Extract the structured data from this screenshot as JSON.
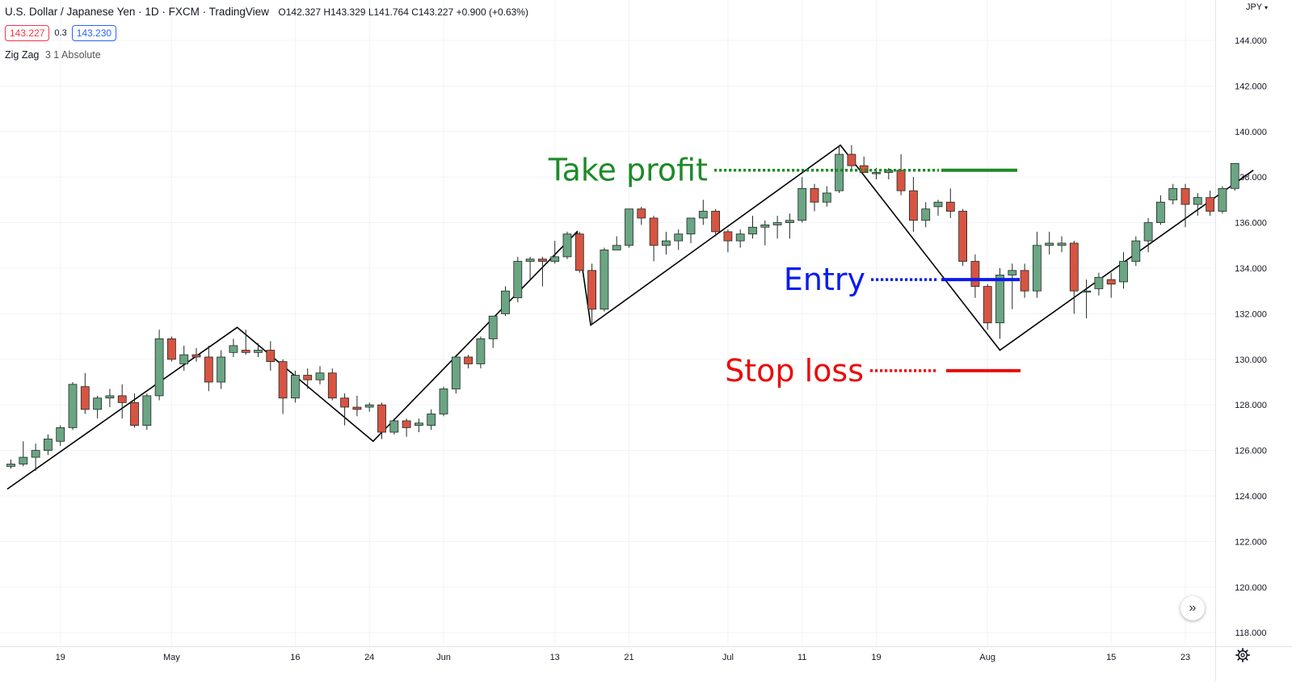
{
  "legend": {
    "title": "U.S. Dollar / Japanese Yen · 1D · FXCM · TradingView",
    "ohlc": "O142.327 H143.329 L141.764 C143.227 +0.900 (+0.63%)",
    "sell_price": "143.227",
    "spread": "0.3",
    "buy_price": "143.230",
    "indicator_name": "Zig Zag",
    "indicator_params": "3 1 Absolute"
  },
  "currency": "JPY",
  "colors": {
    "up": "#6ba583",
    "down": "#d75442",
    "zigzag": "#000000",
    "take_profit": "#1e8a28",
    "entry": "#0a1bf0",
    "stop_loss": "#ea0c0c",
    "grid": "#f0f3fa"
  },
  "chart_data": {
    "type": "candlestick",
    "y_axis": {
      "min": 116.8,
      "max": 145.2,
      "ticks": [
        118,
        120,
        122,
        124,
        126,
        128,
        130,
        132,
        134,
        136,
        138,
        140,
        142,
        144
      ],
      "tick_labels": [
        "118.000",
        "120.000",
        "122.000",
        "124.000",
        "126.000",
        "128.000",
        "130.000",
        "132.000",
        "134.000",
        "136.000",
        "138.000",
        "140.000",
        "142.000",
        "144.000"
      ]
    },
    "x_axis": {
      "labels": [
        {
          "text": "19",
          "idx": 4
        },
        {
          "text": "May",
          "idx": 13
        },
        {
          "text": "16",
          "idx": 23
        },
        {
          "text": "24",
          "idx": 29
        },
        {
          "text": "Jun",
          "idx": 35
        },
        {
          "text": "13",
          "idx": 44
        },
        {
          "text": "21",
          "idx": 50
        },
        {
          "text": "Jul",
          "idx": 58
        },
        {
          "text": "11",
          "idx": 64
        },
        {
          "text": "19",
          "idx": 70
        },
        {
          "text": "Aug",
          "idx": 79
        },
        {
          "text": "15",
          "idx": 89
        },
        {
          "text": "23",
          "idx": 95
        }
      ]
    },
    "candles": [
      [
        125.3,
        125.6,
        125.2,
        125.4
      ],
      [
        125.4,
        126.4,
        125.3,
        125.7
      ],
      [
        125.7,
        126.3,
        125.1,
        126.0
      ],
      [
        126.0,
        126.7,
        125.8,
        126.5
      ],
      [
        126.4,
        127.1,
        126.2,
        127.0
      ],
      [
        127.0,
        129.0,
        126.9,
        128.9
      ],
      [
        128.8,
        129.4,
        127.6,
        127.8
      ],
      [
        127.8,
        128.4,
        127.4,
        128.3
      ],
      [
        128.3,
        128.7,
        127.9,
        128.4
      ],
      [
        128.4,
        128.9,
        127.4,
        128.1
      ],
      [
        128.1,
        128.5,
        127.0,
        127.1
      ],
      [
        127.1,
        128.5,
        126.9,
        128.4
      ],
      [
        128.4,
        131.3,
        128.2,
        130.9
      ],
      [
        130.9,
        131.0,
        129.9,
        130.0
      ],
      [
        129.8,
        130.6,
        129.5,
        130.2
      ],
      [
        130.2,
        130.5,
        129.9,
        130.1
      ],
      [
        130.1,
        130.6,
        128.6,
        129.0
      ],
      [
        129.0,
        130.4,
        128.7,
        130.1
      ],
      [
        130.3,
        130.9,
        130.1,
        130.6
      ],
      [
        130.4,
        131.3,
        130.2,
        130.3
      ],
      [
        130.3,
        130.7,
        130.1,
        130.4
      ],
      [
        130.4,
        130.8,
        129.5,
        129.9
      ],
      [
        129.9,
        130.0,
        127.6,
        128.3
      ],
      [
        128.3,
        129.5,
        128.1,
        129.3
      ],
      [
        129.3,
        129.6,
        128.7,
        129.1
      ],
      [
        129.1,
        129.7,
        128.9,
        129.4
      ],
      [
        129.4,
        129.6,
        128.2,
        128.3
      ],
      [
        128.3,
        128.5,
        127.1,
        127.9
      ],
      [
        127.9,
        128.4,
        127.5,
        127.8
      ],
      [
        127.9,
        128.1,
        127.7,
        128.0
      ],
      [
        128.0,
        128.1,
        126.5,
        126.8
      ],
      [
        126.8,
        127.4,
        126.7,
        127.3
      ],
      [
        127.3,
        127.4,
        126.6,
        127.0
      ],
      [
        127.1,
        127.4,
        126.8,
        127.2
      ],
      [
        127.1,
        127.8,
        126.9,
        127.6
      ],
      [
        127.6,
        128.8,
        127.5,
        128.7
      ],
      [
        128.7,
        130.2,
        128.5,
        130.1
      ],
      [
        130.1,
        130.2,
        129.6,
        129.8
      ],
      [
        129.8,
        131.0,
        129.6,
        130.9
      ],
      [
        130.9,
        131.9,
        130.5,
        131.9
      ],
      [
        132.0,
        133.2,
        131.9,
        133.0
      ],
      [
        132.7,
        134.5,
        132.5,
        134.3
      ],
      [
        134.3,
        134.5,
        133.5,
        134.4
      ],
      [
        134.4,
        134.5,
        133.2,
        134.3
      ],
      [
        134.3,
        135.2,
        134.2,
        134.5
      ],
      [
        134.5,
        135.6,
        134.4,
        135.5
      ],
      [
        135.5,
        135.6,
        133.8,
        133.9
      ],
      [
        133.9,
        134.2,
        131.5,
        132.2
      ],
      [
        132.2,
        134.9,
        132.1,
        134.8
      ],
      [
        134.8,
        135.4,
        134.8,
        135.0
      ],
      [
        135.0,
        136.6,
        134.9,
        136.6
      ],
      [
        136.6,
        136.7,
        135.9,
        136.2
      ],
      [
        136.2,
        136.3,
        134.3,
        135.0
      ],
      [
        135.0,
        135.6,
        134.6,
        135.2
      ],
      [
        135.2,
        135.7,
        134.8,
        135.5
      ],
      [
        135.5,
        136.2,
        135.1,
        136.2
      ],
      [
        136.2,
        137.0,
        135.9,
        136.5
      ],
      [
        136.5,
        136.6,
        135.4,
        135.6
      ],
      [
        135.6,
        135.7,
        134.7,
        135.2
      ],
      [
        135.2,
        135.7,
        134.9,
        135.5
      ],
      [
        135.5,
        136.3,
        135.3,
        135.8
      ],
      [
        135.8,
        136.1,
        135.0,
        135.9
      ],
      [
        135.9,
        136.3,
        135.3,
        136.0
      ],
      [
        136.0,
        136.4,
        135.3,
        136.1
      ],
      [
        136.1,
        138.0,
        136.0,
        137.5
      ],
      [
        137.5,
        137.7,
        136.5,
        136.9
      ],
      [
        136.9,
        137.6,
        136.7,
        137.3
      ],
      [
        137.4,
        139.4,
        137.3,
        139.0
      ],
      [
        139.0,
        139.4,
        138.3,
        138.5
      ],
      [
        138.5,
        138.9,
        138.2,
        138.2
      ],
      [
        138.2,
        138.4,
        137.9,
        138.2
      ],
      [
        138.2,
        138.4,
        137.9,
        138.3
      ],
      [
        138.3,
        139.0,
        137.2,
        137.4
      ],
      [
        137.4,
        138.0,
        135.6,
        136.1
      ],
      [
        136.1,
        136.9,
        135.8,
        136.6
      ],
      [
        136.7,
        137.0,
        136.3,
        136.9
      ],
      [
        136.9,
        137.5,
        136.2,
        136.5
      ],
      [
        136.5,
        136.6,
        134.1,
        134.3
      ],
      [
        134.3,
        134.6,
        132.7,
        133.2
      ],
      [
        133.2,
        133.3,
        131.3,
        131.6
      ],
      [
        131.6,
        134.0,
        130.9,
        133.7
      ],
      [
        133.7,
        134.2,
        132.2,
        133.9
      ],
      [
        133.9,
        134.2,
        132.7,
        133.0
      ],
      [
        133.0,
        135.6,
        132.7,
        135.0
      ],
      [
        135.0,
        135.6,
        134.6,
        135.1
      ],
      [
        135.0,
        135.4,
        134.7,
        135.1
      ],
      [
        135.1,
        135.2,
        132.0,
        133.0
      ],
      [
        133.0,
        133.5,
        131.8,
        133.0
      ],
      [
        133.1,
        133.8,
        132.8,
        133.6
      ],
      [
        133.5,
        133.8,
        132.7,
        133.3
      ],
      [
        133.4,
        134.7,
        133.1,
        134.3
      ],
      [
        134.3,
        135.4,
        134.1,
        135.2
      ],
      [
        135.2,
        136.2,
        134.7,
        136.0
      ],
      [
        136.0,
        137.2,
        135.9,
        136.9
      ],
      [
        137.0,
        137.7,
        136.8,
        137.5
      ],
      [
        137.5,
        137.7,
        135.8,
        136.8
      ],
      [
        136.8,
        137.3,
        136.3,
        137.1
      ],
      [
        137.1,
        137.4,
        136.3,
        136.5
      ],
      [
        136.5,
        137.6,
        136.4,
        137.5
      ],
      [
        137.5,
        138.6,
        137.4,
        138.6
      ]
    ],
    "zigzag": [
      {
        "idx": -0.3,
        "price": 124.3
      },
      {
        "idx": 18.3,
        "price": 131.4
      },
      {
        "idx": 29.3,
        "price": 126.4
      },
      {
        "idx": 45.8,
        "price": 135.6
      },
      {
        "idx": 46.9,
        "price": 131.5
      },
      {
        "idx": 67.1,
        "price": 139.4
      },
      {
        "idx": 80.0,
        "price": 130.4
      },
      {
        "idx": 100.5,
        "price": 138.3
      }
    ],
    "annotations": [
      {
        "key": "take_profit",
        "label": "Take profit",
        "price": 138.3,
        "dot_x1": 884,
        "dot_x2": 1162,
        "solid_x1": 1165,
        "solid_x2": 1259,
        "label_right": 876
      },
      {
        "key": "entry",
        "label": "Entry",
        "price": 133.5,
        "dot_x1": 1078,
        "dot_x2": 1162,
        "solid_x1": 1165,
        "solid_x2": 1262,
        "label_right": 1071
      },
      {
        "key": "stop_loss",
        "label": "Stop loss",
        "price": 129.5,
        "dot_x1": 1077,
        "dot_x2": 1160,
        "solid_x1": 1171,
        "solid_x2": 1263,
        "label_right": 1069
      }
    ]
  }
}
